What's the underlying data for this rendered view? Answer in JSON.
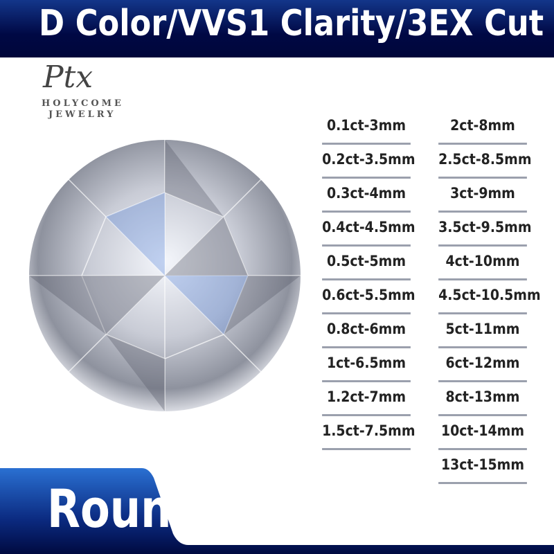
{
  "header": {
    "title": "D Color/VVS1 Clarity/3EX Cut"
  },
  "logo": {
    "script": "Ptx",
    "line1": "HOLYCOME",
    "line2": "JEWELRY"
  },
  "sizes": {
    "left": [
      "0.1ct-3mm",
      "0.2ct-3.5mm",
      "0.3ct-4mm",
      "0.4ct-4.5mm",
      "0.5ct-5mm",
      "0.6ct-5.5mm",
      "0.8ct-6mm",
      "1ct-6.5mm",
      "1.2ct-7mm",
      "1.5ct-7.5mm"
    ],
    "right": [
      "2ct-8mm",
      "2.5ct-8.5mm",
      "3ct-9mm",
      "3.5ct-9.5mm",
      "4ct-10mm",
      "4.5ct-10.5mm",
      "5ct-11mm",
      "6ct-12mm",
      "8ct-13mm",
      "10ct-14mm",
      "13ct-15mm"
    ]
  },
  "shape": {
    "label": "Round"
  },
  "colors": {
    "navy": "#000844",
    "blue": "#2a6fd0",
    "divider": "#9ba0ad"
  }
}
